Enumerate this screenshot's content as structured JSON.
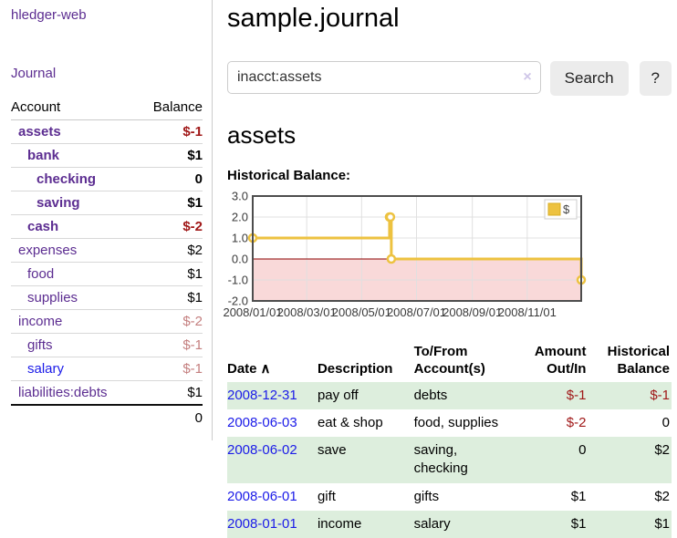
{
  "app": {
    "title": "hledger-web"
  },
  "sidebar": {
    "journal_link": "Journal",
    "accounts_table": {
      "headers": {
        "account": "Account",
        "balance": "Balance"
      },
      "rows": [
        {
          "account": "assets",
          "balance": "$-1"
        },
        {
          "account": "bank",
          "balance": "$1"
        },
        {
          "account": "checking",
          "balance": "0"
        },
        {
          "account": "saving",
          "balance": "$1"
        },
        {
          "account": "cash",
          "balance": "$-2"
        },
        {
          "account": "expenses",
          "balance": "$2"
        },
        {
          "account": "food",
          "balance": "$1"
        },
        {
          "account": "supplies",
          "balance": "$1"
        },
        {
          "account": "income",
          "balance": "$-2"
        },
        {
          "account": "gifts",
          "balance": "$-1"
        },
        {
          "account": "salary",
          "balance": "$-1"
        },
        {
          "account": "liabilities:debts",
          "balance": "$1"
        }
      ],
      "total": "0"
    }
  },
  "header": {
    "title": "sample.journal"
  },
  "search": {
    "value": "inacct:assets",
    "clear_icon": "×",
    "search_button": "Search",
    "help_button": "?"
  },
  "account_page": {
    "heading": "assets",
    "chart_label": "Historical Balance:"
  },
  "chart_data": {
    "type": "line",
    "step": true,
    "title": "Historical Balance",
    "series": [
      {
        "name": "$",
        "color": "#edc240",
        "points": [
          {
            "date": "2008-01-01",
            "value": 1
          },
          {
            "date": "2008-06-01",
            "value": 2
          },
          {
            "date": "2008-06-02",
            "value": 2
          },
          {
            "date": "2008-06-03",
            "value": 0
          },
          {
            "date": "2008-12-31",
            "value": -1
          }
        ]
      }
    ],
    "x_ticks": [
      "2008/01/01",
      "2008/03/01",
      "2008/05/01",
      "2008/07/01",
      "2008/09/01",
      "2008/11/01"
    ],
    "y_ticks": [
      3,
      2,
      1,
      0,
      -1,
      -2
    ],
    "ylim": [
      -2,
      3
    ],
    "xlim": [
      "2008-01-01",
      "2008-12-31"
    ],
    "legend_position": "top-right",
    "grid": true,
    "colors": {
      "negative_region": "#f9d9d9",
      "zero_line": "#8b0000",
      "grid_line": "#e0e0e0",
      "border": "#4d4d4d",
      "tick_text": "#3a3a3a",
      "legend_box_border": "#cccccc",
      "legend_swatch_border": "#d8ae23"
    }
  },
  "transactions": {
    "sort_indicator": "∧",
    "headers": {
      "date": "Date",
      "description": "Description",
      "accounts": "To/From Account(s)",
      "amount": "Amount Out/In",
      "balance": "Historical Balance"
    },
    "rows": [
      {
        "date": "2008-12-31",
        "description": "pay off",
        "accounts": "debts",
        "amount": "$-1",
        "balance": "$-1"
      },
      {
        "date": "2008-06-03",
        "description": "eat & shop",
        "accounts": "food, supplies",
        "amount": "$-2",
        "balance": "0"
      },
      {
        "date": "2008-06-02",
        "description": "save",
        "accounts": "saving, checking",
        "amount": "0",
        "balance": "$2"
      },
      {
        "date": "2008-06-01",
        "description": "gift",
        "accounts": "gifts",
        "amount": "$1",
        "balance": "$2"
      },
      {
        "date": "2008-01-01",
        "description": "income",
        "accounts": "salary",
        "amount": "$1",
        "balance": "$1"
      }
    ]
  }
}
